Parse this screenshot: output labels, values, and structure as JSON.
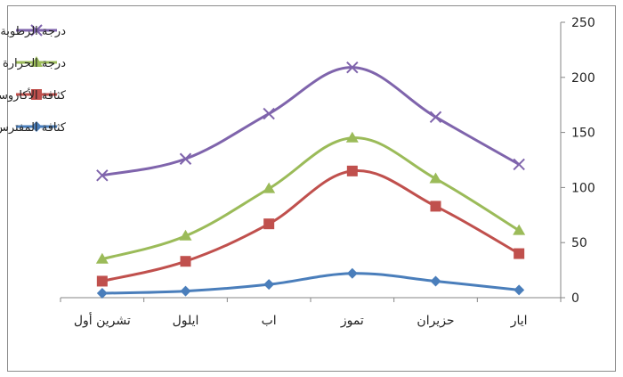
{
  "chart_data": {
    "type": "line",
    "categories": [
      "تشرين أول",
      "ايلول",
      "اب",
      "تموز",
      "حزيران",
      "ايار"
    ],
    "y_axis_position": "right",
    "ylim": [
      0,
      250
    ],
    "yticks": [
      0,
      50,
      100,
      150,
      200,
      250
    ],
    "grid": false,
    "legend_position": "top-left",
    "series": [
      {
        "name": "درجة الرطوبة",
        "color": "#7f64ac",
        "marker": "cross",
        "values": [
          111,
          126,
          167,
          209,
          164,
          121
        ]
      },
      {
        "name": "درجة الحرارة",
        "color": "#9bbb59",
        "marker": "triangle",
        "values": [
          35,
          56,
          99,
          145,
          108,
          61
        ]
      },
      {
        "name": "كثافة الأكاروسات الحمراء",
        "color": "#c0504d",
        "marker": "square",
        "values": [
          15,
          33,
          67,
          115,
          83,
          40
        ]
      },
      {
        "name": "كثافة المفترس",
        "color": "#4a7ebb",
        "marker": "diamond",
        "values": [
          4,
          6,
          12,
          22,
          15,
          7
        ]
      }
    ]
  }
}
